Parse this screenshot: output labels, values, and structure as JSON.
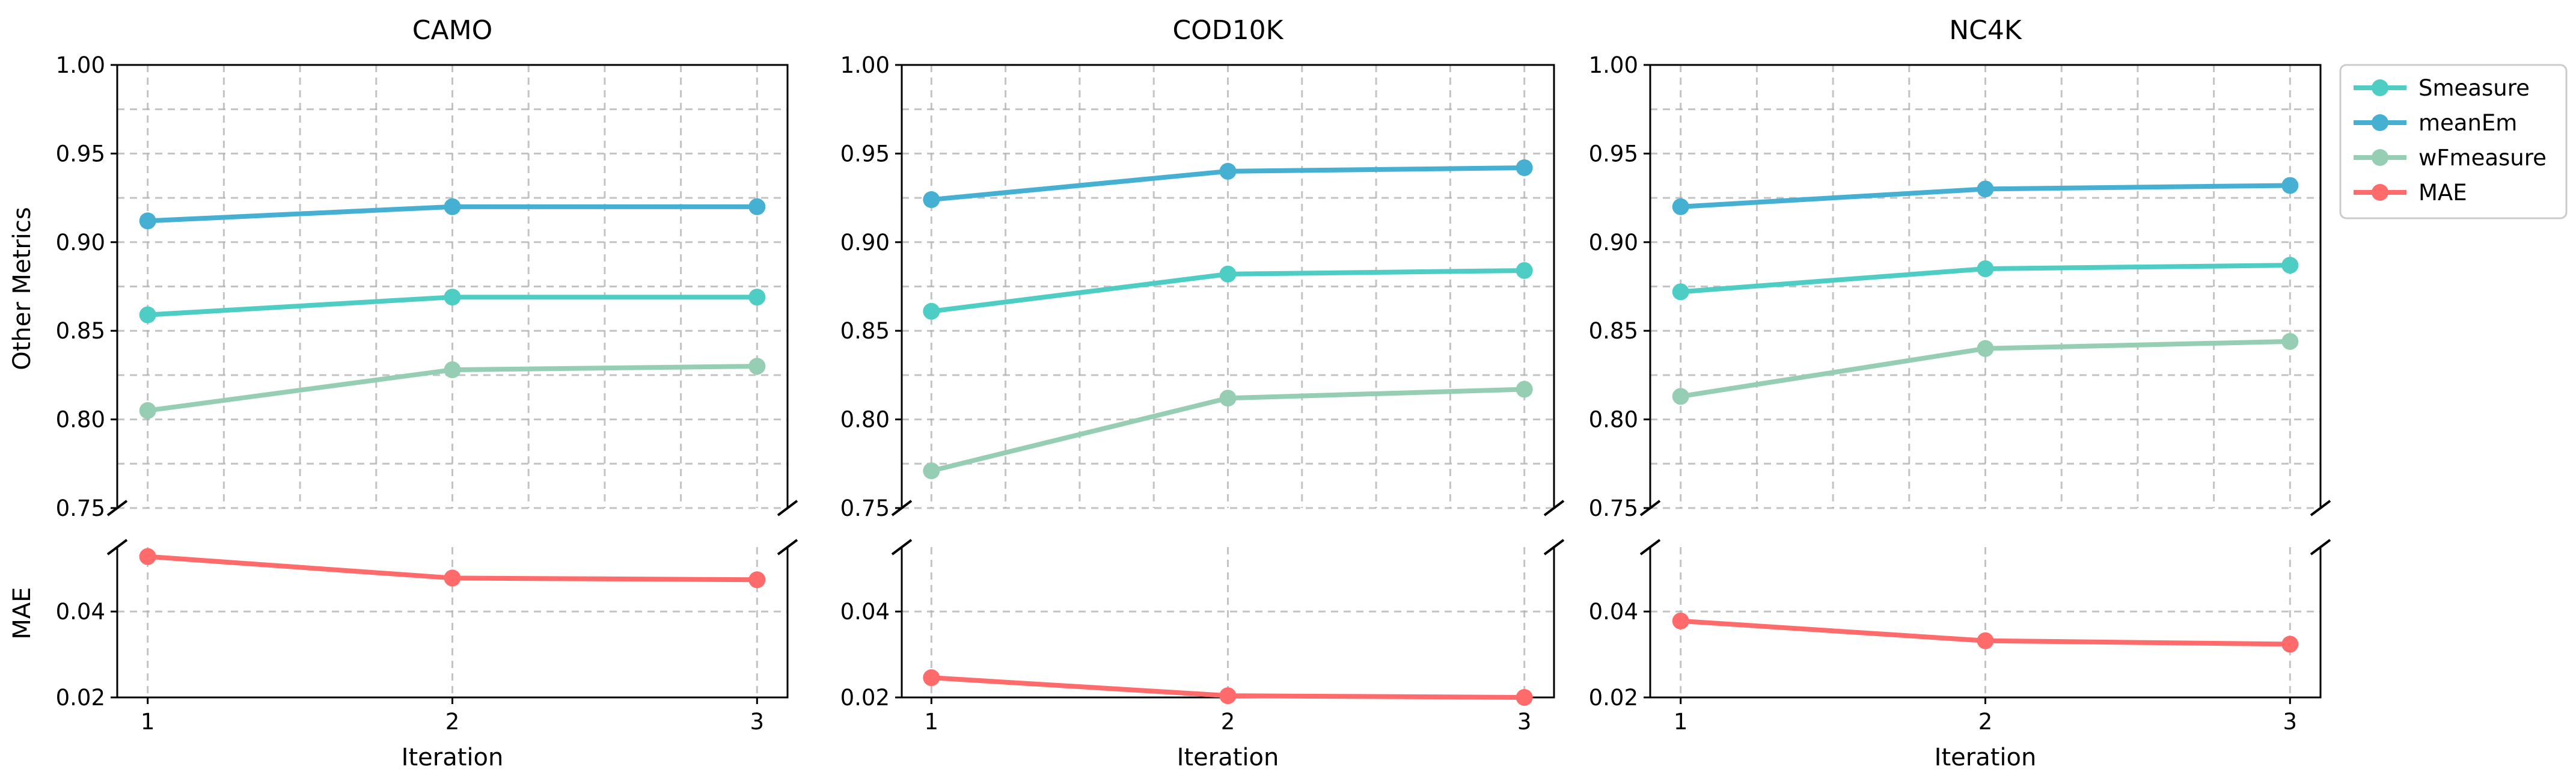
{
  "chart_data": {
    "type": "line",
    "x": [
      1,
      2,
      3
    ],
    "xlabel": "Iteration",
    "upper_ylabel": "Other Metrics",
    "lower_ylabel": "MAE",
    "upper_ylim": [
      0.75,
      1.0
    ],
    "lower_ylim": [
      0.02,
      0.055
    ],
    "upper_yticks": [
      "0.75",
      "0.80",
      "0.85",
      "0.90",
      "0.95",
      "1.00"
    ],
    "lower_yticks": [
      "0.02",
      "0.04"
    ],
    "xticks": [
      "1",
      "2",
      "3"
    ],
    "grid": true,
    "legend_position": "right",
    "colors": {
      "Smeasure": "#4ecdc4",
      "meanEm": "#45b0d2",
      "wFmeasure": "#96ceb4",
      "MAE": "#ff6b6b"
    },
    "legend": [
      {
        "name": "Smeasure",
        "color": "#4ecdc4"
      },
      {
        "name": "meanEm",
        "color": "#45b0d2"
      },
      {
        "name": "wFmeasure",
        "color": "#96ceb4"
      },
      {
        "name": "MAE",
        "color": "#ff6b6b"
      }
    ],
    "panels": [
      {
        "title": "CAMO",
        "series": [
          {
            "name": "Smeasure",
            "values": [
              0.859,
              0.869,
              0.869
            ]
          },
          {
            "name": "meanEm",
            "values": [
              0.912,
              0.92,
              0.92
            ]
          },
          {
            "name": "wFmeasure",
            "values": [
              0.805,
              0.828,
              0.83
            ]
          },
          {
            "name": "MAE",
            "values": [
              0.0528,
              0.0478,
              0.0474
            ]
          }
        ]
      },
      {
        "title": "COD10K",
        "series": [
          {
            "name": "Smeasure",
            "values": [
              0.861,
              0.882,
              0.884
            ]
          },
          {
            "name": "meanEm",
            "values": [
              0.924,
              0.94,
              0.942
            ]
          },
          {
            "name": "wFmeasure",
            "values": [
              0.771,
              0.812,
              0.817
            ]
          },
          {
            "name": "MAE",
            "values": [
              0.0246,
              0.0204,
              0.02
            ]
          }
        ]
      },
      {
        "title": "NC4K",
        "series": [
          {
            "name": "Smeasure",
            "values": [
              0.872,
              0.885,
              0.887
            ]
          },
          {
            "name": "meanEm",
            "values": [
              0.92,
              0.93,
              0.932
            ]
          },
          {
            "name": "wFmeasure",
            "values": [
              0.813,
              0.84,
              0.844
            ]
          },
          {
            "name": "MAE",
            "values": [
              0.0378,
              0.0332,
              0.0324
            ]
          }
        ]
      }
    ]
  }
}
